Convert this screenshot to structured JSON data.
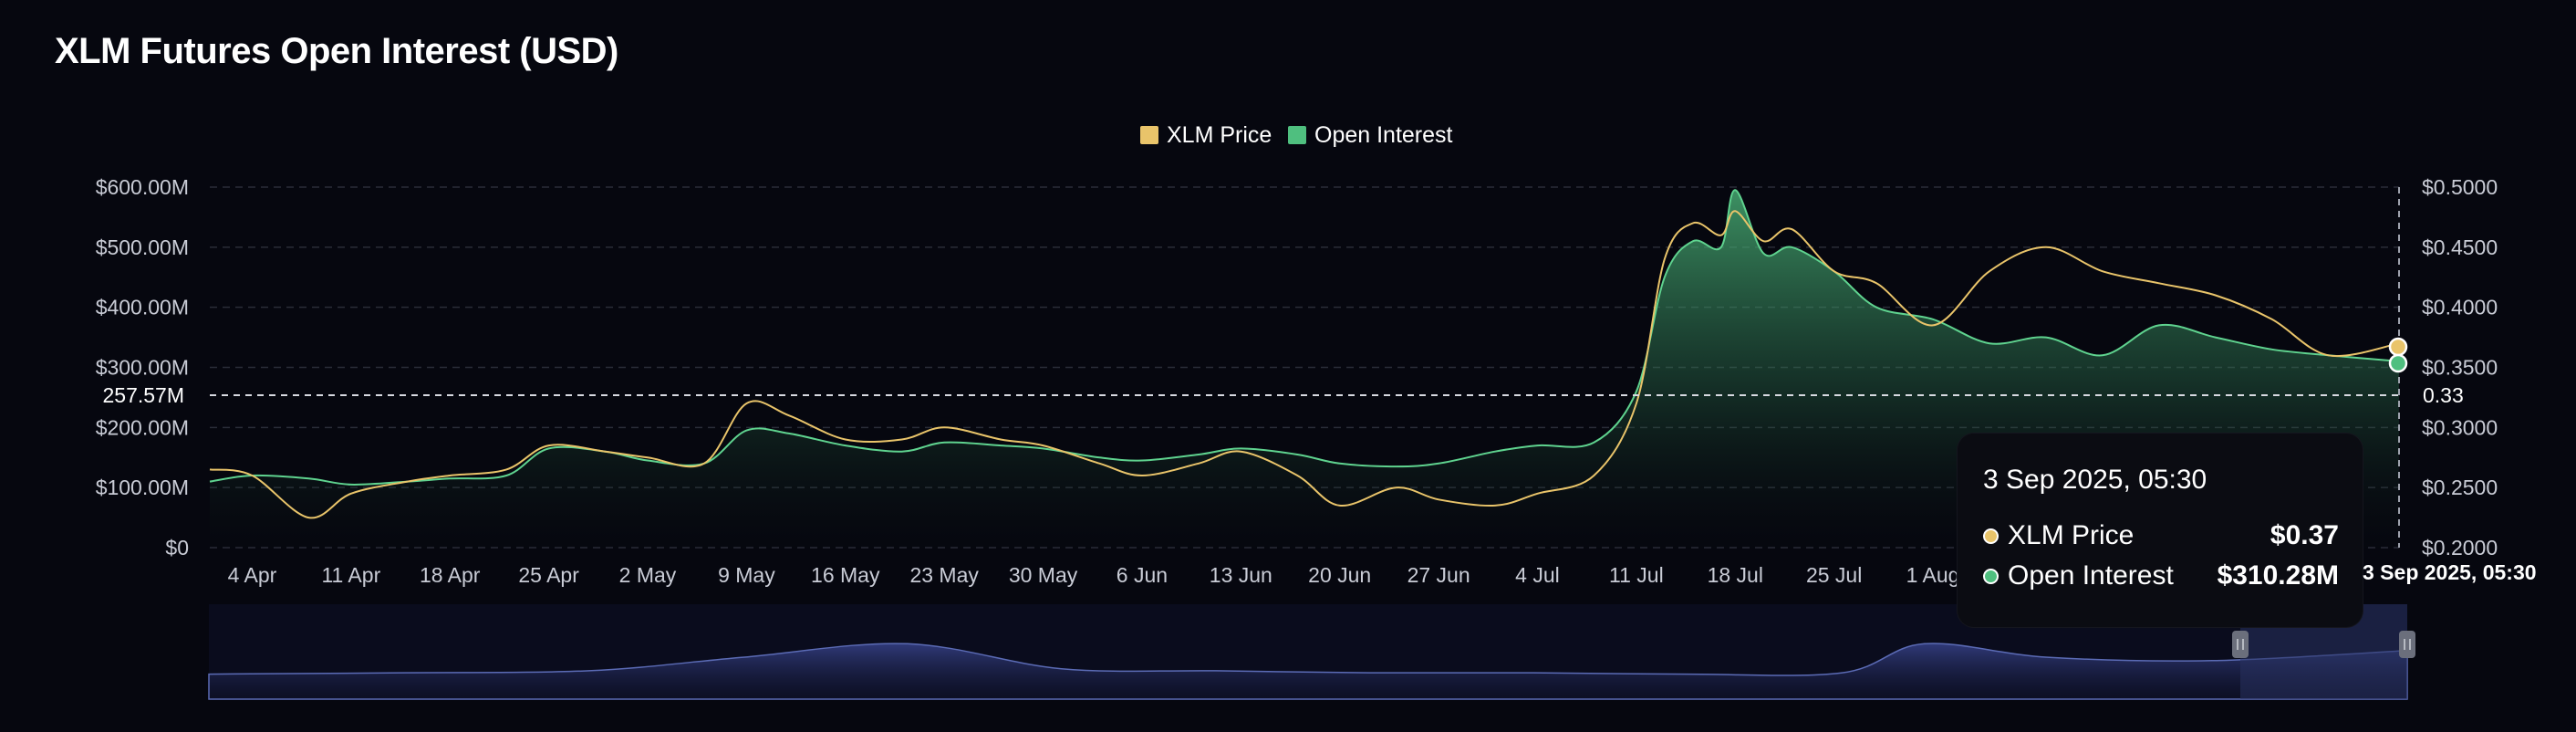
{
  "title": "XLM Futures Open Interest (USD)",
  "colors": {
    "background": "#06070f",
    "price": "#e9c46a",
    "open_interest": "#4fbf7f",
    "navigator": "#5b6bb5"
  },
  "legend": [
    {
      "label": "XLM Price",
      "color": "#e9c46a"
    },
    {
      "label": "Open Interest",
      "color": "#4fbf7f"
    }
  ],
  "crosshair": {
    "left_value": "257.57M",
    "right_value": "0.33",
    "x_label": "3 Sep 2025, 05:30"
  },
  "tooltip": {
    "date": "3 Sep 2025, 05:30",
    "rows": [
      {
        "label": "XLM Price",
        "value": "$0.37"
      },
      {
        "label": "Open Interest",
        "value": "$310.28M"
      }
    ]
  },
  "chart_data": {
    "type": "area",
    "title": "XLM Futures Open Interest (USD)",
    "x_start": "2025-04-01",
    "x_end": "2025-09-03",
    "x_ticks": [
      "4 Apr",
      "11 Apr",
      "18 Apr",
      "25 Apr",
      "2 May",
      "9 May",
      "16 May",
      "23 May",
      "30 May",
      "6 Jun",
      "13 Jun",
      "20 Jun",
      "27 Jun",
      "4 Jul",
      "11 Jul",
      "18 Jul",
      "25 Jul",
      "1 Aug"
    ],
    "y_left": {
      "label": "",
      "ticks": [
        "$0",
        "$100.00M",
        "$200.00M",
        "$300.00M",
        "$400.00M",
        "$500.00M",
        "$600.00M"
      ],
      "range": [
        0,
        600
      ]
    },
    "y_right": {
      "label": "",
      "ticks": [
        "$0.2000",
        "$0.2500",
        "$0.3000",
        "$0.3500",
        "$0.4000",
        "$0.4500",
        "$0.5000"
      ],
      "range": [
        0.2,
        0.5
      ]
    },
    "grid": true,
    "legend_position": "top-center",
    "series": [
      {
        "name": "Open Interest",
        "axis": "left",
        "style": "area",
        "x": [
          "2025-04-01",
          "2025-04-04",
          "2025-04-08",
          "2025-04-11",
          "2025-04-15",
          "2025-04-18",
          "2025-04-22",
          "2025-04-25",
          "2025-04-29",
          "2025-05-02",
          "2025-05-06",
          "2025-05-09",
          "2025-05-12",
          "2025-05-16",
          "2025-05-20",
          "2025-05-23",
          "2025-05-27",
          "2025-05-30",
          "2025-06-03",
          "2025-06-06",
          "2025-06-10",
          "2025-06-13",
          "2025-06-17",
          "2025-06-20",
          "2025-06-24",
          "2025-06-27",
          "2025-07-01",
          "2025-07-04",
          "2025-07-08",
          "2025-07-11",
          "2025-07-13",
          "2025-07-15",
          "2025-07-17",
          "2025-07-18",
          "2025-07-20",
          "2025-07-22",
          "2025-07-25",
          "2025-07-28",
          "2025-08-01",
          "2025-08-05",
          "2025-08-09",
          "2025-08-13",
          "2025-08-17",
          "2025-08-21",
          "2025-08-25",
          "2025-08-29",
          "2025-09-03"
        ],
        "values": [
          110,
          120,
          115,
          105,
          110,
          115,
          120,
          165,
          160,
          145,
          140,
          195,
          190,
          170,
          160,
          175,
          170,
          165,
          150,
          145,
          155,
          165,
          155,
          140,
          135,
          140,
          160,
          170,
          175,
          260,
          450,
          510,
          500,
          595,
          490,
          500,
          460,
          400,
          380,
          340,
          350,
          320,
          370,
          350,
          330,
          320,
          310
        ]
      },
      {
        "name": "XLM Price",
        "axis": "right",
        "style": "line",
        "x": [
          "2025-04-01",
          "2025-04-04",
          "2025-04-08",
          "2025-04-11",
          "2025-04-15",
          "2025-04-18",
          "2025-04-22",
          "2025-04-25",
          "2025-04-29",
          "2025-05-02",
          "2025-05-06",
          "2025-05-09",
          "2025-05-12",
          "2025-05-16",
          "2025-05-20",
          "2025-05-23",
          "2025-05-27",
          "2025-05-30",
          "2025-06-03",
          "2025-06-06",
          "2025-06-10",
          "2025-06-13",
          "2025-06-17",
          "2025-06-20",
          "2025-06-24",
          "2025-06-27",
          "2025-07-01",
          "2025-07-04",
          "2025-07-08",
          "2025-07-11",
          "2025-07-13",
          "2025-07-15",
          "2025-07-17",
          "2025-07-18",
          "2025-07-20",
          "2025-07-22",
          "2025-07-25",
          "2025-07-28",
          "2025-08-01",
          "2025-08-05",
          "2025-08-09",
          "2025-08-13",
          "2025-08-17",
          "2025-08-21",
          "2025-08-25",
          "2025-08-29",
          "2025-09-03"
        ],
        "values": [
          0.265,
          0.26,
          0.225,
          0.245,
          0.255,
          0.26,
          0.265,
          0.285,
          0.28,
          0.275,
          0.27,
          0.32,
          0.31,
          0.29,
          0.29,
          0.3,
          0.29,
          0.285,
          0.27,
          0.26,
          0.27,
          0.28,
          0.26,
          0.235,
          0.25,
          0.24,
          0.235,
          0.245,
          0.26,
          0.32,
          0.44,
          0.47,
          0.46,
          0.48,
          0.455,
          0.465,
          0.43,
          0.42,
          0.385,
          0.43,
          0.45,
          0.43,
          0.42,
          0.41,
          0.39,
          0.36,
          0.37
        ]
      }
    ],
    "navigator": {
      "type": "area",
      "x": [
        "2025-02-01",
        "2025-02-20",
        "2025-03-10",
        "2025-03-25",
        "2025-04-10",
        "2025-04-25",
        "2025-05-10",
        "2025-05-25",
        "2025-06-10",
        "2025-06-25",
        "2025-07-10",
        "2025-07-18",
        "2025-07-30",
        "2025-08-15",
        "2025-09-03"
      ],
      "values": [
        0.1,
        0.12,
        0.15,
        0.35,
        0.55,
        0.18,
        0.15,
        0.12,
        0.12,
        0.1,
        0.12,
        0.55,
        0.35,
        0.3,
        0.45
      ],
      "selected_start": "2025-08-01",
      "selected_end": "2025-09-03"
    }
  }
}
